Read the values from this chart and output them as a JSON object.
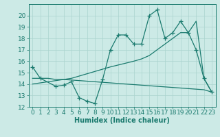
{
  "line1_x": [
    0,
    1,
    3,
    4,
    5,
    6,
    7,
    8,
    9,
    10,
    11,
    12,
    13,
    14,
    15,
    16,
    17,
    18,
    19,
    20,
    21,
    22,
    23
  ],
  "line1_y": [
    15.5,
    14.5,
    13.8,
    13.9,
    14.2,
    12.8,
    12.5,
    12.3,
    14.4,
    17.0,
    18.3,
    18.3,
    17.5,
    17.5,
    20.0,
    20.5,
    18.0,
    18.5,
    19.5,
    18.5,
    17.0,
    14.5,
    13.3
  ],
  "line2_x": [
    0,
    1,
    2,
    3,
    4,
    5,
    6,
    7,
    8,
    9,
    10,
    11,
    12,
    13,
    14,
    15,
    16,
    17,
    18,
    19,
    20,
    21,
    22,
    23
  ],
  "line2_y": [
    14.5,
    14.5,
    14.5,
    14.4,
    14.4,
    14.35,
    14.3,
    14.25,
    14.2,
    14.15,
    14.1,
    14.05,
    14.0,
    13.95,
    13.9,
    13.85,
    13.8,
    13.75,
    13.7,
    13.65,
    13.6,
    13.55,
    13.5,
    13.3
  ],
  "line3_x": [
    0,
    5,
    10,
    13,
    14,
    15,
    16,
    17,
    18,
    19,
    20,
    21,
    22,
    23
  ],
  "line3_y": [
    14.0,
    14.5,
    15.5,
    16.0,
    16.2,
    16.5,
    17.0,
    17.5,
    18.0,
    18.5,
    18.5,
    19.5,
    14.5,
    13.3
  ],
  "color": "#1a7a6e",
  "bg_color": "#cceae6",
  "grid_color": "#aad4cf",
  "ylim": [
    12,
    21
  ],
  "xlim": [
    -0.5,
    23.5
  ],
  "xlabel": "Humidex (Indice chaleur)",
  "yticks": [
    12,
    13,
    14,
    15,
    16,
    17,
    18,
    19,
    20
  ],
  "xticks": [
    0,
    1,
    2,
    3,
    4,
    5,
    6,
    7,
    8,
    9,
    10,
    11,
    12,
    13,
    14,
    15,
    16,
    17,
    18,
    19,
    20,
    21,
    22,
    23
  ],
  "marker": "+",
  "markersize": 4,
  "linewidth": 0.9,
  "font_size": 6.5
}
